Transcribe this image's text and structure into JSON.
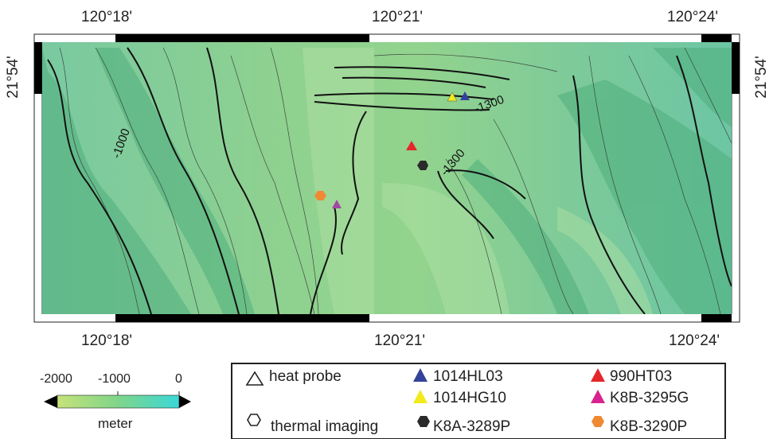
{
  "map": {
    "top_ticks": [
      "120°18'",
      "120°21'",
      "120°24'"
    ],
    "bottom_ticks": [
      "120°18'",
      "120°21'",
      "120°24'"
    ],
    "left_lat": "21°54'",
    "right_lat": "21°54'",
    "contour_labels": [
      "-1000",
      "-1300",
      "-1300"
    ]
  },
  "colorbar": {
    "tick_labels": [
      "-2000",
      "-1000",
      "0"
    ],
    "unit": "meter",
    "color_low": "#c6e27a",
    "color_high": "#3ad8d8"
  },
  "legend": {
    "heat_probe_label": "heat probe",
    "thermal_imaging_label": "thermal imaging",
    "items": [
      {
        "name": "1014HL03",
        "symbol": "triangle",
        "color": "#34439a"
      },
      {
        "name": "1014HG10",
        "symbol": "triangle",
        "color": "#f2ea1a"
      },
      {
        "name": "990HT03",
        "symbol": "triangle",
        "color": "#e5262a"
      },
      {
        "name": "K8B-3295G",
        "symbol": "triangle",
        "color": "#d8238f"
      },
      {
        "name": "K8A-3289P",
        "symbol": "hexagon",
        "color": "#2a2a2a"
      },
      {
        "name": "K8B-3290P",
        "symbol": "hexagon",
        "color": "#ef8a33"
      }
    ]
  }
}
